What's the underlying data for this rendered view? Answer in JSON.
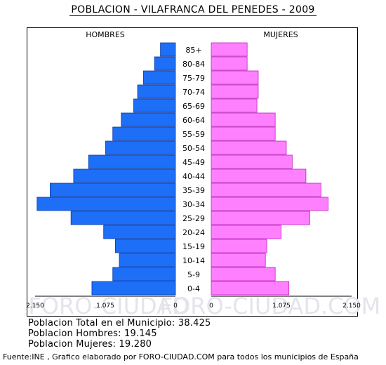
{
  "header": {
    "title": "POBLACION - VILAFRANCA DEL PENEDES - 2009"
  },
  "watermark": {
    "left": "FORO-CIUDAD",
    "right": "FORO-CIUDAD.COM"
  },
  "summary": {
    "total": "Poblacion Total en el Municipio: 38.425",
    "hombres": "Poblacion Hombres: 19.145",
    "mujeres": "Poblacion Mujeres: 19.280"
  },
  "footer": {
    "source": "Fuente:INE , Grafico elaborado por FORO-CIUDAD.COM para todos los municipios de España"
  },
  "colors": {
    "male": "#1e6ff7",
    "male_stroke": "#0a3aa8",
    "female": "#ff80ff",
    "female_stroke": "#c020c0"
  },
  "chart_data": {
    "type": "bar",
    "orientation": "horizontal-pyramid",
    "left_label": "HOMBRES",
    "right_label": "MUJERES",
    "categories": [
      "85+",
      "80-84",
      "75-79",
      "70-74",
      "65-69",
      "60-64",
      "55-59",
      "50-54",
      "45-49",
      "40-44",
      "35-39",
      "30-34",
      "25-29",
      "20-24",
      "15-19",
      "10-14",
      "5-9",
      "0-4"
    ],
    "series": [
      {
        "name": "HOMBRES",
        "values": [
          230,
          320,
          490,
          580,
          640,
          830,
          960,
          1070,
          1330,
          1560,
          1920,
          2120,
          1600,
          1100,
          920,
          860,
          960,
          1280
        ]
      },
      {
        "name": "MUJERES",
        "values": [
          550,
          550,
          720,
          720,
          700,
          980,
          980,
          1150,
          1240,
          1450,
          1680,
          1790,
          1510,
          1070,
          850,
          830,
          980,
          1190
        ]
      }
    ],
    "xlim": [
      0,
      2150
    ],
    "xticks": [
      "2.150",
      "1.075",
      "0",
      "0",
      "1.075",
      "2.150"
    ]
  }
}
